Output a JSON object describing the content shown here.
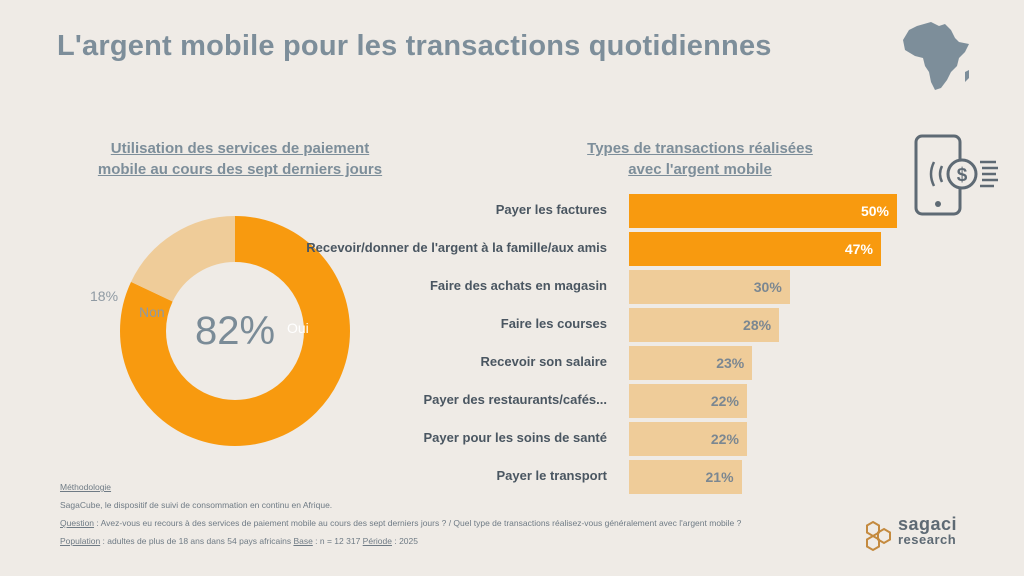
{
  "title": "L'argent mobile pour les transactions quotidiennes",
  "left_subtitle": [
    "Utilisation des services de paiement",
    "mobile au cours des sept derniers jours"
  ],
  "right_subtitle": [
    "Types de transactions réalisées",
    "avec l'argent mobile"
  ],
  "chart_data": [
    {
      "type": "pie",
      "labels": [
        "Oui",
        "Non"
      ],
      "values": [
        82,
        18
      ],
      "center_label": "82%",
      "outside_label": "18%",
      "colors": [
        "#f89a0f",
        "#efcc99"
      ]
    },
    {
      "type": "bar",
      "orientation": "horizontal",
      "categories": [
        "Payer les factures",
        "Recevoir/donner de l'argent à la famille/aux amis",
        "Faire des achats en magasin",
        "Faire les courses",
        "Recevoir son salaire",
        "Payer des restaurants/cafés...",
        "Payer pour les soins de santé",
        "Payer le transport"
      ],
      "values": [
        50,
        47,
        30,
        28,
        23,
        22,
        22,
        21
      ],
      "value_labels": [
        "50%",
        "47%",
        "30%",
        "28%",
        "23%",
        "22%",
        "22%",
        "21%"
      ],
      "highlight_count": 2,
      "colors": {
        "highlight": "#f89a0f",
        "normal": "#efcc99"
      }
    }
  ],
  "methodology": {
    "heading": "Méthodologie",
    "line1": "SagaCube, le dispositif de suivi de consommation en continu en Afrique.",
    "question_label": "Question",
    "question_text": " : Avez-vous eu recours à des services de paiement mobile au cours des sept derniers jours ? / Quel type de transactions réalisez-vous généralement avec l'argent mobile ?",
    "population_label": "Population",
    "population_text": " : adultes de plus de 18 ans dans 54 pays africains ",
    "base_label": "Base",
    "base_text": " : n = 12 317 ",
    "periode_label": "Période",
    "periode_text": " : 2025"
  },
  "logo": {
    "line1": "sagaci",
    "line2": "research"
  },
  "icons": {
    "map": "africa-map-icon",
    "phone": "mobile-payment-icon"
  }
}
